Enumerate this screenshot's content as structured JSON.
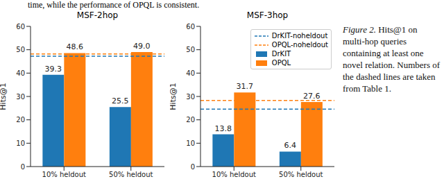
{
  "header_text": "time, while the performance of OPQL is consistent.",
  "caption": {
    "label": "Figure 2.",
    "text": "Hits@1 on multi-hop queries containing at least one novel relation. Numbers of the dashed lines are taken from Table 1."
  },
  "chart_data": [
    {
      "type": "bar",
      "title": "MSF-2hop",
      "y_label": "Hits@1",
      "categories": [
        "10% heldout",
        "50% heldout"
      ],
      "series": [
        {
          "name": "DrKIT",
          "color": "#1f77b4",
          "values": [
            39.3,
            25.5
          ]
        },
        {
          "name": "OPQL",
          "color": "#ff7f0e",
          "values": [
            48.6,
            49.0
          ],
          "value_labels": [
            "48.6",
            "49.0"
          ]
        }
      ],
      "reference_lines": [
        {
          "name": "DrKIT-noheldout",
          "value": 47.2,
          "color": "#1f77b4",
          "line_style": "dashed"
        },
        {
          "name": "OPQL-noheldout",
          "value": 48.2,
          "color": "#ff7f0e",
          "line_style": "dashed"
        }
      ],
      "ylim": [
        0,
        60
      ],
      "yticks": [
        0,
        10,
        20,
        30,
        40,
        50,
        60
      ],
      "data_labels": true
    },
    {
      "type": "bar",
      "title": "MSF-3hop",
      "y_label": "Hits@1",
      "categories": [
        "10% heldout",
        "50% heldout"
      ],
      "series": [
        {
          "name": "DrKIT",
          "color": "#1f77b4",
          "values": [
            13.8,
            6.4
          ]
        },
        {
          "name": "OPQL",
          "color": "#ff7f0e",
          "values": [
            31.7,
            27.6
          ]
        }
      ],
      "reference_lines": [
        {
          "name": "DrKIT-noheldout",
          "value": 24.6,
          "color": "#1f77b4",
          "line_style": "dashed"
        },
        {
          "name": "OPQL-noheldout",
          "value": 28.3,
          "color": "#ff7f0e",
          "line_style": "dashed"
        }
      ],
      "ylim": [
        0,
        60
      ],
      "yticks": [
        0,
        10,
        20,
        30,
        40,
        50,
        60
      ],
      "data_labels": true,
      "legend": "upper right"
    }
  ]
}
